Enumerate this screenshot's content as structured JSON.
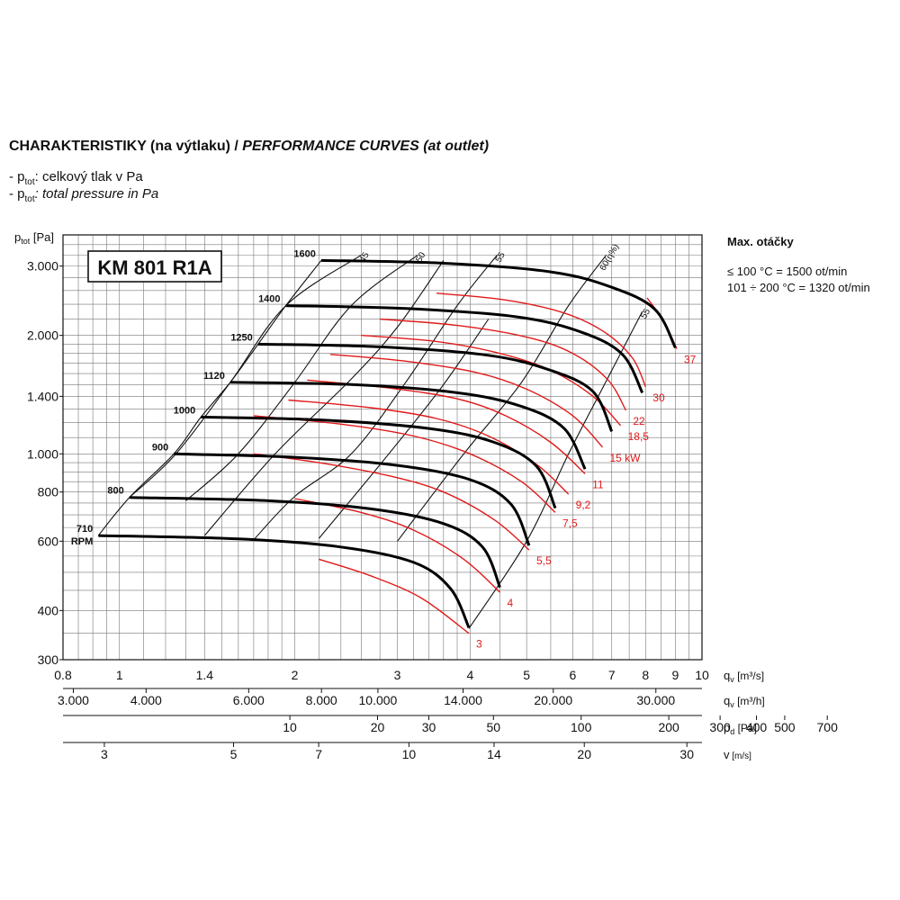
{
  "header": {
    "title_bold": "CHARAKTERISTIKY (na výtlaku) / ",
    "title_italic": "PERFORMANCE CURVES (at outlet)",
    "legend": [
      {
        "prefix": "- p",
        "sub": "tot",
        "text": ": celkový tlak v Pa",
        "italic": false
      },
      {
        "prefix": "- p",
        "sub": "tot",
        "text": ": total pressure in Pa",
        "italic": true
      }
    ]
  },
  "side_notes": {
    "heading": "Max. otáčky",
    "line1": "≤ 100 °C = 1500 ot/min",
    "line2": "101 ÷ 200 °C = 1320 ot/min"
  },
  "chart_data": {
    "type": "line",
    "model": "KM 801 R1A",
    "y_axis": {
      "label_p": "p",
      "label_sub": "tot",
      "label_unit": "[Pa]",
      "scale": "log",
      "range": [
        300,
        3600
      ],
      "ticks": [
        300,
        400,
        600,
        800,
        1000,
        1400,
        2000,
        3000
      ],
      "tick_labels": [
        "300",
        "400",
        "600",
        "800",
        "1.000",
        "1.400",
        "2.000",
        "3.000"
      ]
    },
    "x_axes": [
      {
        "label": "q",
        "sub": "v",
        "unit": "[m³/s]",
        "scale": "log",
        "range": [
          0.8,
          10
        ],
        "ticks": [
          0.8,
          1,
          1.4,
          2,
          3,
          4,
          5,
          6,
          7,
          8,
          9,
          10
        ],
        "tick_labels": [
          "0.8",
          "1",
          "1.4",
          "2",
          "3",
          "4",
          "5",
          "6",
          "7",
          "8",
          "9",
          "10"
        ]
      },
      {
        "label": "q",
        "sub": "v",
        "unit": "[m³/h]",
        "ticks": [
          3000,
          4000,
          6000,
          8000,
          10000,
          14000,
          20000,
          30000
        ],
        "tick_labels": [
          "3.000",
          "4.000",
          "6.000",
          "8.000",
          "10.000",
          "14.000",
          "20.000",
          "30.000"
        ]
      },
      {
        "label": "p",
        "sub": "d",
        "unit": "[Pa]",
        "ticks": [
          10,
          20,
          30,
          50,
          100,
          200,
          300,
          400,
          500,
          700
        ],
        "tick_labels": [
          "10",
          "20",
          "30",
          "50",
          "100",
          "200",
          "300",
          "400",
          "500",
          "700"
        ]
      },
      {
        "label": "v",
        "sub": "",
        "unit": "[m/s]",
        "ticks": [
          3,
          5,
          7,
          10,
          14,
          20,
          30
        ],
        "tick_labels": [
          "3",
          "5",
          "7",
          "10",
          "14",
          "20",
          "30"
        ]
      }
    ],
    "grid": true,
    "speed_unit_label": "RPM",
    "speed_curves": [
      {
        "rpm": "710",
        "points": [
          [
            0.92,
            620
          ],
          [
            1.6,
            608
          ],
          [
            2.4,
            580
          ],
          [
            3.2,
            530
          ],
          [
            3.7,
            455
          ],
          [
            3.98,
            362
          ]
        ]
      },
      {
        "rpm": "800",
        "points": [
          [
            1.04,
            775
          ],
          [
            1.8,
            760
          ],
          [
            2.7,
            725
          ],
          [
            3.6,
            665
          ],
          [
            4.2,
            580
          ],
          [
            4.5,
            458
          ]
        ]
      },
      {
        "rpm": "900",
        "points": [
          [
            1.24,
            1000
          ],
          [
            2.0,
            980
          ],
          [
            3.0,
            935
          ],
          [
            4.0,
            860
          ],
          [
            4.7,
            745
          ],
          [
            5.05,
            585
          ]
        ]
      },
      {
        "rpm": "1000",
        "points": [
          [
            1.38,
            1240
          ],
          [
            2.2,
            1220
          ],
          [
            3.4,
            1160
          ],
          [
            4.4,
            1070
          ],
          [
            5.2,
            930
          ],
          [
            5.6,
            728
          ]
        ]
      },
      {
        "rpm": "1120",
        "points": [
          [
            1.55,
            1520
          ],
          [
            2.5,
            1500
          ],
          [
            3.8,
            1430
          ],
          [
            4.9,
            1320
          ],
          [
            5.8,
            1160
          ],
          [
            6.3,
            915
          ]
        ]
      },
      {
        "rpm": "1250",
        "points": [
          [
            1.73,
            1900
          ],
          [
            2.8,
            1870
          ],
          [
            4.3,
            1780
          ],
          [
            5.5,
            1630
          ],
          [
            6.5,
            1440
          ],
          [
            7.0,
            1140
          ]
        ]
      },
      {
        "rpm": "1400",
        "points": [
          [
            1.93,
            2380
          ],
          [
            3.1,
            2340
          ],
          [
            4.8,
            2230
          ],
          [
            6.2,
            2040
          ],
          [
            7.3,
            1790
          ],
          [
            7.9,
            1430
          ]
        ]
      },
      {
        "rpm": "1600",
        "points": [
          [
            2.22,
            3100
          ],
          [
            3.6,
            3050
          ],
          [
            5.5,
            2900
          ],
          [
            7.0,
            2650
          ],
          [
            8.3,
            2330
          ],
          [
            9.0,
            1860
          ]
        ]
      }
    ],
    "power_curves": [
      {
        "label": "3",
        "points": [
          [
            3.98,
            350
          ],
          [
            3.3,
            430
          ],
          [
            2.7,
            490
          ],
          [
            2.2,
            540
          ]
        ]
      },
      {
        "label": "4",
        "points": [
          [
            4.5,
            445
          ],
          [
            3.9,
            540
          ],
          [
            3.2,
            640
          ],
          [
            2.6,
            710
          ],
          [
            2.0,
            770
          ]
        ]
      },
      {
        "label": "5,5",
        "points": [
          [
            5.05,
            570
          ],
          [
            4.4,
            680
          ],
          [
            3.6,
            800
          ],
          [
            2.9,
            880
          ],
          [
            2.2,
            950
          ],
          [
            1.7,
            1000
          ]
        ]
      },
      {
        "label": "7,5",
        "points": [
          [
            5.6,
            710
          ],
          [
            4.9,
            850
          ],
          [
            4.0,
            1000
          ],
          [
            3.2,
            1110
          ],
          [
            2.4,
            1190
          ],
          [
            1.7,
            1250
          ]
        ]
      },
      {
        "label": "9,2",
        "points": [
          [
            5.9,
            790
          ],
          [
            5.2,
            940
          ],
          [
            4.3,
            1110
          ],
          [
            3.5,
            1230
          ],
          [
            2.7,
            1310
          ],
          [
            1.95,
            1370
          ]
        ]
      },
      {
        "label": "11",
        "points": [
          [
            6.3,
            890
          ],
          [
            5.5,
            1070
          ],
          [
            4.6,
            1250
          ],
          [
            3.8,
            1380
          ],
          [
            2.9,
            1470
          ],
          [
            2.1,
            1540
          ]
        ]
      },
      {
        "label": "15 kW",
        "points": [
          [
            6.75,
            1040
          ],
          [
            6.0,
            1250
          ],
          [
            5.0,
            1460
          ],
          [
            4.1,
            1610
          ],
          [
            3.1,
            1720
          ],
          [
            2.3,
            1790
          ]
        ]
      },
      {
        "label": "18,5",
        "points": [
          [
            7.25,
            1180
          ],
          [
            6.5,
            1400
          ],
          [
            5.5,
            1630
          ],
          [
            4.5,
            1800
          ],
          [
            3.5,
            1930
          ],
          [
            2.6,
            2000
          ]
        ]
      },
      {
        "label": "22",
        "points": [
          [
            7.4,
            1290
          ],
          [
            6.9,
            1540
          ],
          [
            6.0,
            1800
          ],
          [
            5.0,
            1980
          ],
          [
            3.8,
            2120
          ],
          [
            2.8,
            2200
          ]
        ]
      },
      {
        "label": "30",
        "points": [
          [
            8.0,
            1480
          ],
          [
            7.6,
            1750
          ],
          [
            6.8,
            2040
          ],
          [
            5.8,
            2280
          ],
          [
            4.6,
            2460
          ],
          [
            3.5,
            2560
          ]
        ]
      },
      {
        "label": "37",
        "points": [
          [
            9.05,
            1850
          ],
          [
            8.6,
            2170
          ],
          [
            8.05,
            2490
          ]
        ]
      }
    ],
    "efficiency_lines": [
      {
        "label": "45",
        "points": [
          [
            1.04,
            775
          ],
          [
            1.25,
            1000
          ],
          [
            1.55,
            1520
          ],
          [
            1.93,
            2380
          ],
          [
            2.6,
            3200
          ]
        ]
      },
      {
        "label": "50",
        "points": [
          [
            1.3,
            760
          ],
          [
            1.6,
            1000
          ],
          [
            2.0,
            1520
          ],
          [
            2.5,
            2380
          ],
          [
            3.25,
            3200
          ]
        ]
      },
      {
        "label": "55",
        "points": [
          [
            1.7,
            605
          ],
          [
            2.0,
            780
          ],
          [
            2.5,
            1000
          ],
          [
            3.1,
            1520
          ],
          [
            3.8,
            2380
          ],
          [
            4.45,
            3200
          ]
        ]
      },
      {
        "label": "60(η%)",
        "points": [
          [
            3.0,
            600
          ],
          [
            3.9,
            1000
          ],
          [
            4.9,
            1520
          ],
          [
            5.9,
            2380
          ],
          [
            6.85,
            3200
          ]
        ]
      },
      {
        "label": "55",
        "points": [
          [
            3.98,
            360
          ],
          [
            5.0,
            600
          ],
          [
            5.9,
            1000
          ],
          [
            6.8,
            1500
          ],
          [
            7.9,
            2300
          ]
        ]
      },
      {
        "label": "",
        "points": [
          [
            0.92,
            620
          ],
          [
            1.04,
            775
          ],
          [
            1.24,
            1000
          ],
          [
            1.38,
            1240
          ],
          [
            1.55,
            1520
          ],
          [
            1.73,
            1900
          ],
          [
            1.93,
            2380
          ],
          [
            2.22,
            3100
          ]
        ]
      },
      {
        "label": "",
        "points": [
          [
            1.4,
            620
          ],
          [
            1.85,
            1000
          ],
          [
            2.5,
            1550
          ],
          [
            3.0,
            2100
          ],
          [
            3.6,
            3100
          ]
        ]
      },
      {
        "label": "",
        "points": [
          [
            2.2,
            610
          ],
          [
            2.9,
            1000
          ],
          [
            3.6,
            1500
          ],
          [
            4.3,
            2200
          ]
        ]
      }
    ]
  }
}
